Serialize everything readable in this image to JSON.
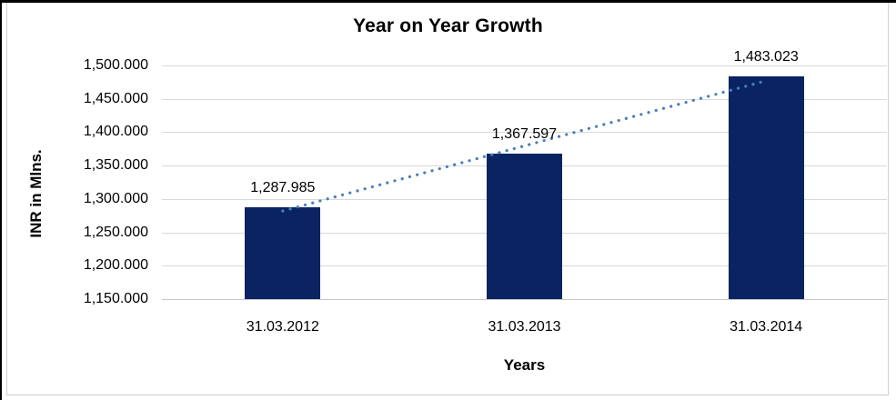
{
  "chart_data": {
    "type": "bar",
    "title": "Year on Year Growth",
    "xlabel": "Years",
    "ylabel": "INR in Mlns.",
    "categories": [
      "31.03.2012",
      "31.03.2013",
      "31.03.2014"
    ],
    "values": [
      1287.985,
      1367.597,
      1483.023
    ],
    "data_labels": [
      "1,287.985",
      "1,367.597",
      "1,483.023"
    ],
    "ylim": [
      1150,
      1500
    ],
    "ytick_step": 50,
    "ytick_labels": [
      "1,500.000",
      "1,450.000",
      "1,400.000",
      "1,350.000",
      "1,300.000",
      "1,250.000",
      "1,200.000",
      "1,150.000"
    ],
    "grid": true,
    "legend": "none",
    "bar_color": "#0a2463",
    "trendline": {
      "type": "linear",
      "style": "dotted",
      "color": "#4a7ebb"
    }
  }
}
